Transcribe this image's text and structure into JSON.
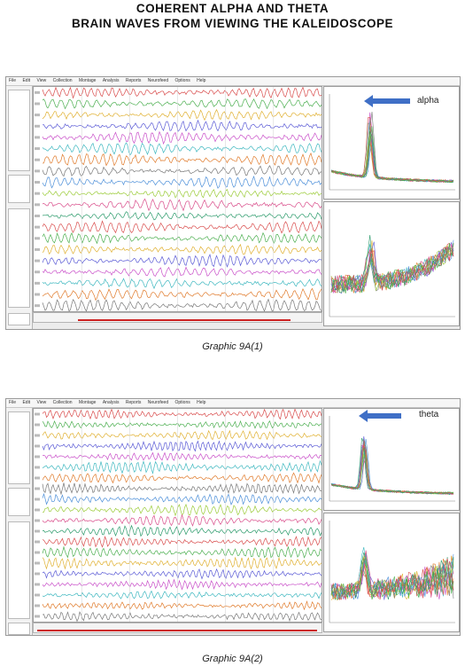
{
  "header": {
    "line1": "COHERENT ALPHA AND THETA",
    "line2": "BRAIN WAVES FROM VIEWING THE KALEIDOSCOPE"
  },
  "figures": [
    {
      "caption": "Graphic 9A(1)",
      "annotation": "alpha",
      "menu": [
        "File",
        "Edit",
        "View",
        "Collection",
        "Montage",
        "Analysis",
        "Reports",
        "Neurofeed",
        "Options",
        "Help"
      ],
      "wave_period": 9
    },
    {
      "caption": "Graphic 9A(2)",
      "annotation": "theta",
      "menu": [
        "File",
        "Edit",
        "View",
        "Collection",
        "Montage",
        "Analysis",
        "Reports",
        "Neurofeed",
        "Options",
        "Help"
      ],
      "wave_period": 7
    }
  ],
  "colors": {
    "trace_palette": [
      "#d94c4c",
      "#4caf50",
      "#e0b030",
      "#5b5bd6",
      "#c94fc9",
      "#3fb8c0",
      "#e07a2a",
      "#777777",
      "#4c8fd9",
      "#9ccc3a",
      "#d94c8a",
      "#2a9a6a"
    ],
    "arrow": "#3f6fc6",
    "timeline_marker": "#cc2222"
  }
}
